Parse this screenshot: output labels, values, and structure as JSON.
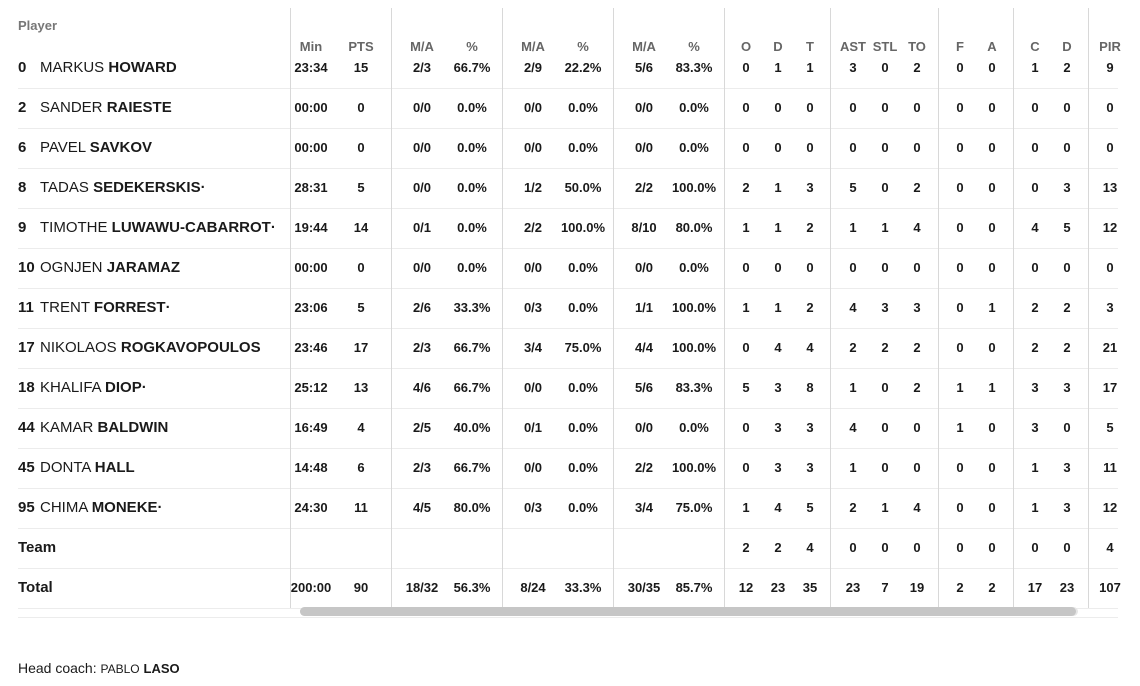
{
  "header": {
    "player_label": "Player",
    "columns": [
      "Min",
      "PTS",
      "M/A",
      "%",
      "M/A",
      "%",
      "M/A",
      "%",
      "O",
      "D",
      "T",
      "AST",
      "STL",
      "TO",
      "F",
      "A",
      "C",
      "D",
      "PIR"
    ]
  },
  "players": [
    {
      "number": "0",
      "first": "MARKUS",
      "last": "HOWARD",
      "starter": false,
      "stats": [
        "23:34",
        "15",
        "2/3",
        "66.7%",
        "2/9",
        "22.2%",
        "5/6",
        "83.3%",
        "0",
        "1",
        "1",
        "3",
        "0",
        "2",
        "0",
        "0",
        "1",
        "2",
        "9"
      ]
    },
    {
      "number": "2",
      "first": "SANDER",
      "last": "RAIESTE",
      "starter": false,
      "stats": [
        "00:00",
        "0",
        "0/0",
        "0.0%",
        "0/0",
        "0.0%",
        "0/0",
        "0.0%",
        "0",
        "0",
        "0",
        "0",
        "0",
        "0",
        "0",
        "0",
        "0",
        "0",
        "0"
      ]
    },
    {
      "number": "6",
      "first": "PAVEL",
      "last": "SAVKOV",
      "starter": false,
      "stats": [
        "00:00",
        "0",
        "0/0",
        "0.0%",
        "0/0",
        "0.0%",
        "0/0",
        "0.0%",
        "0",
        "0",
        "0",
        "0",
        "0",
        "0",
        "0",
        "0",
        "0",
        "0",
        "0"
      ]
    },
    {
      "number": "8",
      "first": "TADAS",
      "last": "SEDEKERSKIS",
      "starter": true,
      "stats": [
        "28:31",
        "5",
        "0/0",
        "0.0%",
        "1/2",
        "50.0%",
        "2/2",
        "100.0%",
        "2",
        "1",
        "3",
        "5",
        "0",
        "2",
        "0",
        "0",
        "0",
        "3",
        "13"
      ]
    },
    {
      "number": "9",
      "first": "TIMOTHE",
      "last": "LUWAWU-CABARROT",
      "starter": true,
      "stats": [
        "19:44",
        "14",
        "0/1",
        "0.0%",
        "2/2",
        "100.0%",
        "8/10",
        "80.0%",
        "1",
        "1",
        "2",
        "1",
        "1",
        "4",
        "0",
        "0",
        "4",
        "5",
        "12"
      ]
    },
    {
      "number": "10",
      "first": "OGNJEN",
      "last": "JARAMAZ",
      "starter": false,
      "stats": [
        "00:00",
        "0",
        "0/0",
        "0.0%",
        "0/0",
        "0.0%",
        "0/0",
        "0.0%",
        "0",
        "0",
        "0",
        "0",
        "0",
        "0",
        "0",
        "0",
        "0",
        "0",
        "0"
      ]
    },
    {
      "number": "11",
      "first": "TRENT",
      "last": "FORREST",
      "starter": true,
      "stats": [
        "23:06",
        "5",
        "2/6",
        "33.3%",
        "0/3",
        "0.0%",
        "1/1",
        "100.0%",
        "1",
        "1",
        "2",
        "4",
        "3",
        "3",
        "0",
        "1",
        "2",
        "2",
        "3"
      ]
    },
    {
      "number": "17",
      "first": "NIKOLAOS",
      "last": "ROGKAVOPOULOS",
      "starter": false,
      "stats": [
        "23:46",
        "17",
        "2/3",
        "66.7%",
        "3/4",
        "75.0%",
        "4/4",
        "100.0%",
        "0",
        "4",
        "4",
        "2",
        "2",
        "2",
        "0",
        "0",
        "2",
        "2",
        "21"
      ]
    },
    {
      "number": "18",
      "first": "KHALIFA",
      "last": "DIOP",
      "starter": true,
      "stats": [
        "25:12",
        "13",
        "4/6",
        "66.7%",
        "0/0",
        "0.0%",
        "5/6",
        "83.3%",
        "5",
        "3",
        "8",
        "1",
        "0",
        "2",
        "1",
        "1",
        "3",
        "3",
        "17"
      ]
    },
    {
      "number": "44",
      "first": "KAMAR",
      "last": "BALDWIN",
      "starter": false,
      "stats": [
        "16:49",
        "4",
        "2/5",
        "40.0%",
        "0/1",
        "0.0%",
        "0/0",
        "0.0%",
        "0",
        "3",
        "3",
        "4",
        "0",
        "0",
        "1",
        "0",
        "3",
        "0",
        "5"
      ]
    },
    {
      "number": "45",
      "first": "DONTA",
      "last": "HALL",
      "starter": false,
      "stats": [
        "14:48",
        "6",
        "2/3",
        "66.7%",
        "0/0",
        "0.0%",
        "2/2",
        "100.0%",
        "0",
        "3",
        "3",
        "1",
        "0",
        "0",
        "0",
        "0",
        "1",
        "3",
        "11"
      ]
    },
    {
      "number": "95",
      "first": "CHIMA",
      "last": "MONEKE",
      "starter": true,
      "stats": [
        "24:30",
        "11",
        "4/5",
        "80.0%",
        "0/3",
        "0.0%",
        "3/4",
        "75.0%",
        "1",
        "4",
        "5",
        "2",
        "1",
        "4",
        "0",
        "0",
        "1",
        "3",
        "12"
      ]
    }
  ],
  "starter_marker": "·",
  "team": {
    "label": "Team",
    "stats": [
      "",
      "",
      "",
      "",
      "",
      "",
      "",
      "",
      "2",
      "2",
      "4",
      "0",
      "0",
      "0",
      "0",
      "0",
      "0",
      "0",
      "4"
    ]
  },
  "total": {
    "label": "Total",
    "stats": [
      "200:00",
      "90",
      "18/32",
      "56.3%",
      "8/24",
      "33.3%",
      "30/35",
      "85.7%",
      "12",
      "23",
      "35",
      "23",
      "7",
      "19",
      "2",
      "2",
      "17",
      "23",
      "107"
    ]
  },
  "coach": {
    "label": "Head coach:",
    "first": "PABLO",
    "last": "LASO"
  }
}
